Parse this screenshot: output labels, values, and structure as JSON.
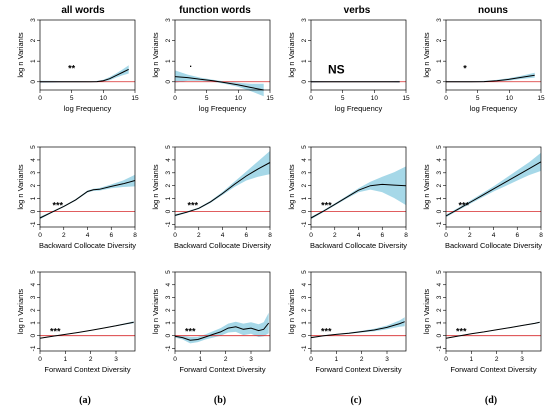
{
  "colors": {
    "band": "#a6d8e8",
    "curve": "#000000",
    "zero_line": "#d62728",
    "frame": "#000000"
  },
  "columns": [
    "all words",
    "function words",
    "verbs",
    "nouns"
  ],
  "panel_letters": [
    "(a)",
    "(b)",
    "(c)",
    "(d)"
  ],
  "ylabel": "log n Variants",
  "chart_data": [
    {
      "type": "line",
      "xlabel": "log Frequency",
      "ylabel": "log n Variants",
      "xlim": [
        0,
        15
      ],
      "ylim": [
        -0.4,
        3.0
      ],
      "xticks": [
        0,
        5,
        10,
        15
      ],
      "yticks": [
        0,
        1,
        2,
        3
      ],
      "rows": [
        {
          "column": "all words",
          "significance": "**",
          "x": [
            0,
            2,
            4,
            6,
            8,
            9,
            10,
            11,
            12,
            13,
            14
          ],
          "y": [
            0,
            0,
            0,
            0,
            0,
            0.01,
            0.05,
            0.15,
            0.3,
            0.45,
            0.6
          ],
          "band_half_width": [
            0.05,
            0.04,
            0.03,
            0.03,
            0.02,
            0.03,
            0.05,
            0.08,
            0.1,
            0.14,
            0.2
          ]
        },
        {
          "column": "function words",
          "significance": "·",
          "x": [
            0,
            2,
            4,
            6,
            8,
            10,
            12,
            14
          ],
          "y": [
            0.25,
            0.2,
            0.12,
            0.05,
            -0.05,
            -0.15,
            -0.28,
            -0.4
          ],
          "band_half_width": [
            0.3,
            0.15,
            0.08,
            0.05,
            0.06,
            0.1,
            0.18,
            0.3
          ]
        },
        {
          "column": "verbs",
          "significance": "NS",
          "x": [
            0,
            3,
            6,
            9,
            12,
            14
          ],
          "y": [
            0,
            0,
            0,
            0,
            0,
            0
          ],
          "band_half_width": [
            0.04,
            0.03,
            0.03,
            0.03,
            0.03,
            0.04
          ]
        },
        {
          "column": "nouns",
          "significance": "*",
          "x": [
            0,
            2,
            4,
            6,
            8,
            10,
            12,
            14
          ],
          "y": [
            0,
            0,
            0,
            0.01,
            0.05,
            0.12,
            0.22,
            0.32
          ],
          "band_half_width": [
            0.03,
            0.03,
            0.03,
            0.03,
            0.04,
            0.06,
            0.08,
            0.12
          ]
        }
      ]
    },
    {
      "type": "line",
      "xlabel": "Backward Collocate Diversity",
      "ylabel": "log n Variants",
      "xlim": [
        0,
        8
      ],
      "ylim": [
        -1.2,
        5.0
      ],
      "xticks": [
        0,
        2,
        4,
        6,
        8
      ],
      "yticks": [
        -1,
        0,
        1,
        2,
        3,
        4,
        5
      ],
      "rows": [
        {
          "column": "all words",
          "significance": "***",
          "x": [
            0,
            1,
            2,
            3,
            4,
            4.5,
            5,
            6,
            7,
            8
          ],
          "y": [
            -0.5,
            -0.05,
            0.4,
            0.9,
            1.55,
            1.68,
            1.72,
            1.95,
            2.15,
            2.4
          ],
          "band_half_width": [
            0.1,
            0.06,
            0.05,
            0.06,
            0.08,
            0.08,
            0.1,
            0.15,
            0.25,
            0.45
          ]
        },
        {
          "column": "function words",
          "significance": "***",
          "x": [
            0,
            1,
            2,
            3,
            4,
            5,
            6,
            7,
            8
          ],
          "y": [
            -0.3,
            -0.05,
            0.25,
            0.75,
            1.4,
            2.1,
            2.75,
            3.3,
            3.8
          ],
          "band_half_width": [
            0.08,
            0.06,
            0.06,
            0.08,
            0.12,
            0.2,
            0.35,
            0.6,
            0.9
          ]
        },
        {
          "column": "verbs",
          "significance": "***",
          "x": [
            0,
            1,
            2,
            3,
            4,
            5,
            6,
            7,
            8
          ],
          "y": [
            -0.5,
            0,
            0.55,
            1.1,
            1.65,
            2.0,
            2.1,
            2.05,
            2.0
          ],
          "band_half_width": [
            0.1,
            0.08,
            0.08,
            0.1,
            0.15,
            0.3,
            0.6,
            1.0,
            1.5
          ]
        },
        {
          "column": "nouns",
          "significance": "***",
          "x": [
            0,
            1,
            2,
            3,
            4,
            5,
            6,
            7,
            8
          ],
          "y": [
            -0.35,
            0.17,
            0.7,
            1.22,
            1.75,
            2.27,
            2.8,
            3.32,
            3.85
          ],
          "band_half_width": [
            0.1,
            0.1,
            0.12,
            0.15,
            0.2,
            0.3,
            0.4,
            0.5,
            0.7
          ]
        }
      ]
    },
    {
      "type": "line",
      "xlabel": "Forward Context Diversity",
      "ylabel": "log n Variants",
      "xlim": [
        0,
        3.75
      ],
      "ylim": [
        -1.2,
        5.0
      ],
      "xticks": [
        0,
        1,
        2,
        3
      ],
      "yticks": [
        -1,
        0,
        1,
        2,
        3,
        4,
        5
      ],
      "rows": [
        {
          "column": "all words",
          "significance": "***",
          "x": [
            0,
            0.5,
            1,
            1.5,
            2,
            2.5,
            3,
            3.5,
            3.7
          ],
          "y": [
            -0.2,
            -0.05,
            0.1,
            0.25,
            0.42,
            0.6,
            0.78,
            0.98,
            1.05
          ],
          "band_half_width": [
            0.03,
            0.02,
            0.02,
            0.02,
            0.02,
            0.03,
            0.04,
            0.06,
            0.08
          ]
        },
        {
          "column": "function words",
          "significance": "***",
          "x": [
            0,
            0.3,
            0.6,
            0.9,
            1.2,
            1.5,
            1.8,
            2.1,
            2.4,
            2.7,
            3.0,
            3.3,
            3.5,
            3.7
          ],
          "y": [
            -0.05,
            -0.15,
            -0.35,
            -0.3,
            -0.1,
            0.1,
            0.3,
            0.6,
            0.7,
            0.5,
            0.6,
            0.4,
            0.5,
            1.0
          ],
          "band_half_width": [
            0.1,
            0.15,
            0.25,
            0.2,
            0.2,
            0.25,
            0.3,
            0.35,
            0.4,
            0.45,
            0.45,
            0.5,
            0.55,
            0.8
          ]
        },
        {
          "column": "verbs",
          "significance": "***",
          "x": [
            0,
            0.5,
            1,
            1.5,
            2,
            2.5,
            3,
            3.5,
            3.7
          ],
          "y": [
            -0.15,
            0,
            0.1,
            0.2,
            0.32,
            0.45,
            0.65,
            0.95,
            1.1
          ],
          "band_half_width": [
            0.05,
            0.04,
            0.04,
            0.05,
            0.07,
            0.1,
            0.15,
            0.25,
            0.35
          ]
        },
        {
          "column": "nouns",
          "significance": "***",
          "x": [
            0,
            0.5,
            1,
            1.5,
            2,
            2.5,
            3,
            3.5,
            3.7
          ],
          "y": [
            -0.2,
            -0.02,
            0.15,
            0.3,
            0.47,
            0.63,
            0.8,
            0.97,
            1.05
          ],
          "band_half_width": [
            0.03,
            0.02,
            0.02,
            0.02,
            0.02,
            0.03,
            0.03,
            0.04,
            0.05
          ]
        }
      ]
    }
  ]
}
